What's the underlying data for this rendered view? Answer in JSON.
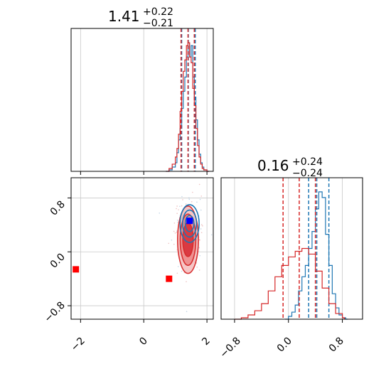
{
  "chart_data": [
    {
      "type": "histogram",
      "panel": "marginal-x",
      "title": {
        "main": "1.41",
        "sup": "+0.22",
        "sub": "−0.21"
      },
      "xlim": [
        -2.3,
        2.2
      ],
      "grid": true,
      "series": [
        {
          "color": "#1f77b4",
          "quantiles": [
            1.2,
            1.41,
            1.63
          ],
          "x": [
            0.7,
            0.8,
            0.9,
            1.0,
            1.05,
            1.1,
            1.15,
            1.2,
            1.25,
            1.3,
            1.35,
            1.4,
            1.45,
            1.5,
            1.55,
            1.6,
            1.65,
            1.7,
            1.75,
            1.8,
            1.85,
            1.9,
            2.0
          ],
          "values": [
            0.0,
            0.01,
            0.03,
            0.06,
            0.13,
            0.22,
            0.3,
            0.44,
            0.56,
            0.66,
            0.8,
            0.9,
            0.8,
            0.88,
            0.66,
            0.52,
            0.36,
            0.22,
            0.12,
            0.06,
            0.03,
            0.01,
            0.0
          ]
        },
        {
          "color": "#d62728",
          "quantiles": [
            1.18,
            1.4,
            1.6
          ],
          "x": [
            0.7,
            0.8,
            0.9,
            1.0,
            1.05,
            1.1,
            1.15,
            1.2,
            1.25,
            1.3,
            1.35,
            1.4,
            1.45,
            1.5,
            1.55,
            1.6,
            1.65,
            1.7,
            1.75,
            1.8,
            1.85,
            1.9,
            2.0
          ],
          "values": [
            0.0,
            0.02,
            0.05,
            0.1,
            0.16,
            0.26,
            0.42,
            0.56,
            0.7,
            0.78,
            0.88,
            0.9,
            0.8,
            0.76,
            0.58,
            0.46,
            0.3,
            0.18,
            0.1,
            0.05,
            0.02,
            0.01,
            0.0
          ]
        }
      ]
    },
    {
      "type": "scatter",
      "panel": "joint",
      "xlim": [
        -2.3,
        2.2
      ],
      "ylim": [
        -1.0,
        1.1
      ],
      "xticks": [
        "−2",
        "0",
        "2"
      ],
      "yticks": [
        "−0.8",
        "0.0",
        "0.8"
      ],
      "grid": true,
      "contours": [
        {
          "color": "#1f77b4",
          "filled": false,
          "cx": 1.45,
          "cy": 0.42,
          "levels": [
            {
              "rx": 0.55,
              "ry": 0.28
            },
            {
              "rx": 0.4,
              "ry": 0.2
            },
            {
              "rx": 0.25,
              "ry": 0.12
            }
          ]
        },
        {
          "color": "#d62728",
          "filled": true,
          "cx": 1.4,
          "cy": 0.18,
          "levels": [
            {
              "rx": 0.6,
              "ry": 0.5
            },
            {
              "rx": 0.45,
              "ry": 0.38
            },
            {
              "rx": 0.3,
              "ry": 0.25
            }
          ]
        }
      ],
      "markers": [
        {
          "x": 1.45,
          "y": 0.46,
          "color": "#0000ff"
        },
        {
          "x": -2.15,
          "y": -0.26,
          "color": "#ff0000"
        },
        {
          "x": 0.8,
          "y": -0.4,
          "color": "#ff0000"
        }
      ]
    },
    {
      "type": "histogram",
      "panel": "marginal-y",
      "title": {
        "main": "0.16",
        "sup": "+0.24",
        "sub": "−0.24"
      },
      "xlim": [
        -1.0,
        1.1
      ],
      "xticks": [
        "−0.8",
        "0.0",
        "0.8"
      ],
      "grid": true,
      "series": [
        {
          "color": "#1f77b4",
          "quantiles": [
            0.3,
            0.42,
            0.6
          ],
          "x": [
            -0.05,
            0.0,
            0.05,
            0.1,
            0.15,
            0.2,
            0.25,
            0.3,
            0.35,
            0.4,
            0.45,
            0.5,
            0.55,
            0.6,
            0.65,
            0.7,
            0.75,
            0.8,
            0.85
          ],
          "values": [
            0.0,
            0.02,
            0.05,
            0.1,
            0.2,
            0.3,
            0.38,
            0.5,
            0.62,
            0.78,
            0.9,
            0.86,
            0.6,
            0.38,
            0.18,
            0.08,
            0.03,
            0.01,
            0.0
          ]
        },
        {
          "color": "#d62728",
          "quantiles": [
            -0.08,
            0.16,
            0.4
          ],
          "x": [
            -0.8,
            -0.7,
            -0.6,
            -0.5,
            -0.4,
            -0.3,
            -0.2,
            -0.1,
            0.0,
            0.1,
            0.2,
            0.3,
            0.4,
            0.5,
            0.6,
            0.7,
            0.8
          ],
          "values": [
            0.0,
            0.01,
            0.03,
            0.06,
            0.11,
            0.2,
            0.3,
            0.38,
            0.44,
            0.48,
            0.5,
            0.46,
            0.34,
            0.22,
            0.11,
            0.04,
            0.01
          ]
        }
      ]
    }
  ]
}
